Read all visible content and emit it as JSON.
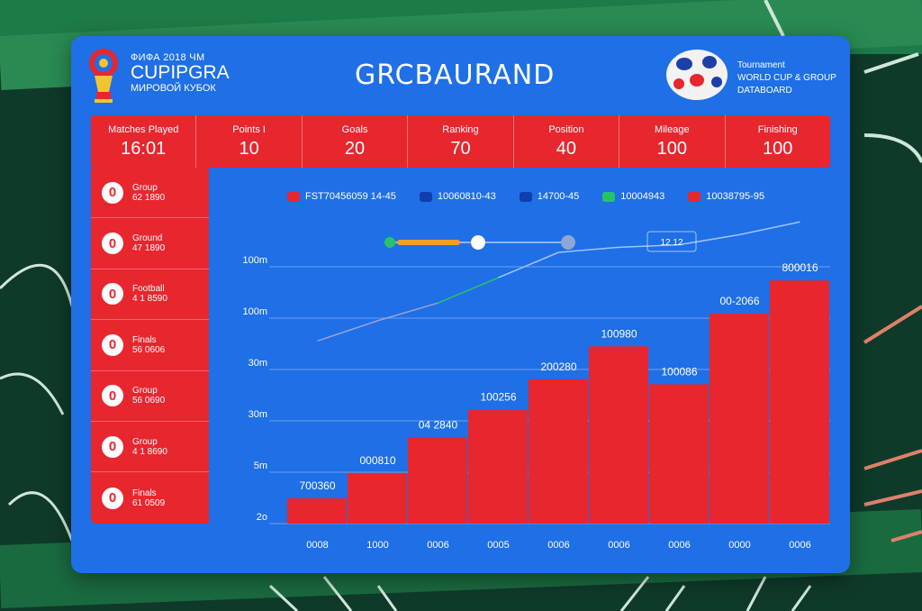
{
  "header": {
    "brand_top": "ФИФА 2018 ЧМ",
    "brand_name": "CUPIPGRA",
    "brand_bottom": "МИРОВОЙ КУБОК",
    "title": "GRCBAURAND",
    "right_lines": [
      "Tournament",
      "WORLD CUP & GROUP",
      "DATABOARD"
    ]
  },
  "stats": [
    {
      "label": "Matches Played",
      "value": "16:01"
    },
    {
      "label": "Points I",
      "value": "10"
    },
    {
      "label": "Goals",
      "value": "20"
    },
    {
      "label": "Ranking",
      "value": "70"
    },
    {
      "label": "Position",
      "value": "40"
    },
    {
      "label": "Mileage",
      "value": "100"
    },
    {
      "label": "Finishing",
      "value": "100"
    }
  ],
  "sidebar": [
    {
      "number": "0",
      "name": "Group",
      "info": "62 1890"
    },
    {
      "number": "0",
      "name": "Ground",
      "info": "47 1890"
    },
    {
      "number": "0",
      "name": "Football",
      "info": "4 1 8590"
    },
    {
      "number": "0",
      "name": "Finals",
      "info": "56 0606"
    },
    {
      "number": "0",
      "name": "Group",
      "info": "56 0690"
    },
    {
      "number": "0",
      "name": "Group",
      "info": "4 1 8690"
    },
    {
      "number": "0",
      "name": "Finals",
      "info": "61 0509"
    }
  ],
  "colors": {
    "panel": "#1f6fe6",
    "red": "#e8262e",
    "line_start": "#9aa3d8",
    "line_mid": "#27c36a",
    "line_end": "#9ec4ff"
  },
  "chart_data": {
    "type": "bar",
    "legend": [
      {
        "name": "FST70456059 14-45",
        "color": "#e8262e"
      },
      {
        "name": "10060810-43",
        "color": "#0e3fae"
      },
      {
        "name": "14700-45",
        "color": "#0e3fae"
      },
      {
        "name": "10004943",
        "color": "#27c36a"
      },
      {
        "name": "10038795-95",
        "color": "#e8262e"
      }
    ],
    "y_ticks": [
      "2o",
      "5m",
      "30m",
      "30m",
      "100m",
      "100m"
    ],
    "x_ticks": [
      "0008",
      "1000",
      "0006",
      "0005",
      "0006",
      "0006",
      "0006",
      "0000",
      "0006"
    ],
    "bars": [
      {
        "label": "700360",
        "value": 10
      },
      {
        "label": "000810",
        "value": 20
      },
      {
        "label": "04 2840",
        "value": 34
      },
      {
        "label": "100256",
        "value": 45
      },
      {
        "label": "200280",
        "value": 57
      },
      {
        "label": "100980",
        "value": 70
      },
      {
        "label": "100086",
        "value": 55
      },
      {
        "label": "00-2066",
        "value": 83
      },
      {
        "label": "800016",
        "value": 96
      }
    ],
    "ylim": [
      0,
      100
    ],
    "line": [
      {
        "x": 0,
        "y": 65
      },
      {
        "x": 1,
        "y": 73
      },
      {
        "x": 2,
        "y": 80
      },
      {
        "x": 3,
        "y": 90
      },
      {
        "x": 4,
        "y": 100
      },
      {
        "x": 5,
        "y": 102
      },
      {
        "x": 6,
        "y": 103
      },
      {
        "x": 7,
        "y": 107
      },
      {
        "x": 8,
        "y": 112
      }
    ],
    "slider_label": "12 12"
  }
}
